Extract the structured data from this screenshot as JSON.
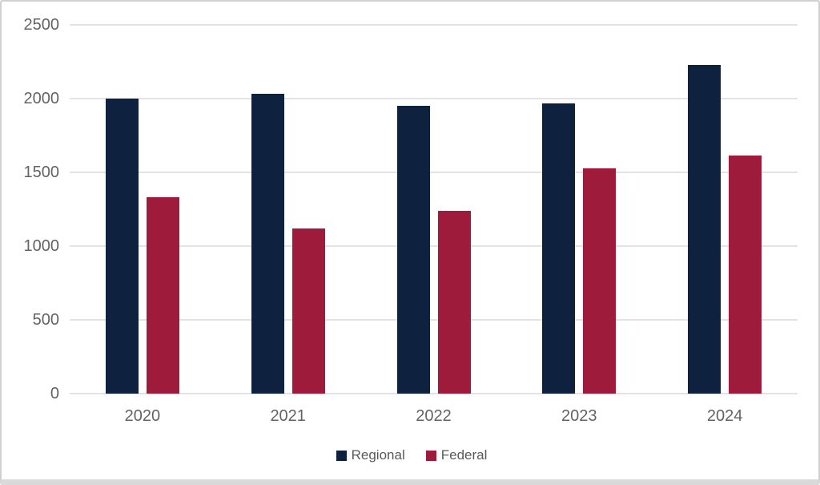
{
  "chart_data": {
    "type": "bar",
    "title": "",
    "xlabel": "",
    "ylabel": "",
    "categories": [
      "2020",
      "2021",
      "2022",
      "2023",
      "2024"
    ],
    "series": [
      {
        "name": "Regional",
        "color": "#0e2240",
        "values": [
          2000,
          2030,
          1950,
          1965,
          2230
        ]
      },
      {
        "name": "Federal",
        "color": "#9e1b3c",
        "values": [
          1330,
          1120,
          1240,
          1525,
          1615
        ]
      }
    ],
    "ylim": [
      0,
      2500
    ],
    "yticks": [
      0,
      500,
      1000,
      1500,
      2000,
      2500
    ],
    "grid": true,
    "legend_position": "bottom",
    "axis_text_color": "#636363",
    "gridline_color": "#e3e3e3"
  }
}
